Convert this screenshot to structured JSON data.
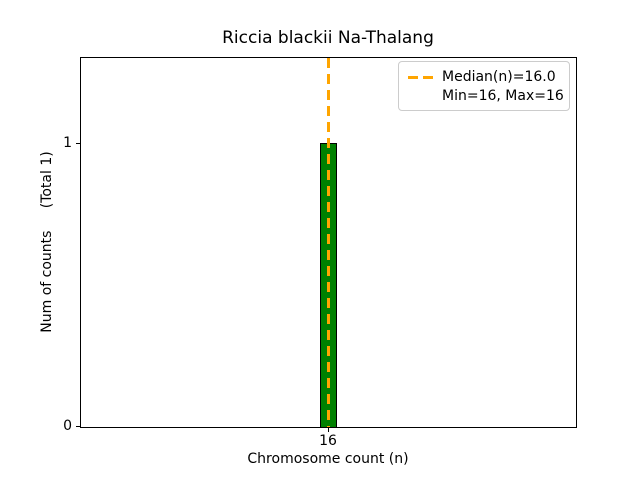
{
  "chart_data": {
    "type": "bar",
    "title": "Riccia blackii Na-Thalang",
    "xlabel": "Chromosome count (n)",
    "ylabel": "Num of counts     (Total 1)",
    "categories": [
      16
    ],
    "values": [
      1
    ],
    "total_counts": 1,
    "xtick_labels": [
      "16"
    ],
    "ytick_labels": [
      "0",
      "1"
    ],
    "ylim": [
      0,
      1.3
    ],
    "grid": false,
    "bar_color": "#008000",
    "bar_edge_color": "#000000",
    "median_line": {
      "value": 16.0,
      "color": "#FFA500",
      "style": "dashed",
      "orientation": "vertical"
    },
    "legend": {
      "position": "upper right",
      "entries": [
        {
          "label_line1": "Median(n)=16.0",
          "label_line2": "Min=16, Max=16",
          "handle": "orange-dashed-line"
        }
      ]
    },
    "stats": {
      "median": 16.0,
      "min": 16,
      "max": 16
    }
  }
}
